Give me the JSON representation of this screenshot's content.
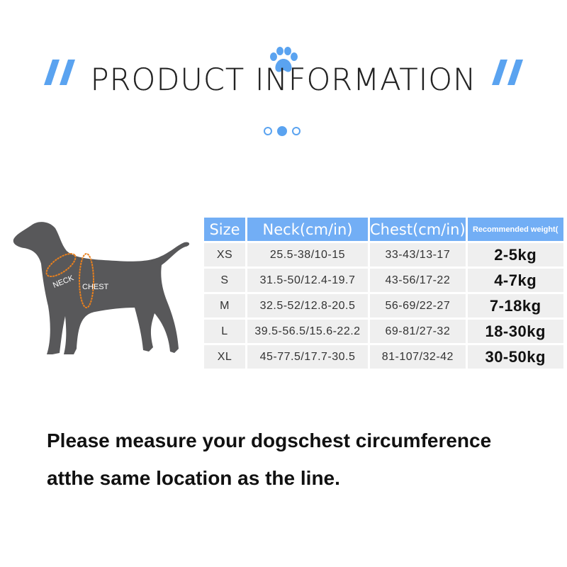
{
  "header": {
    "title": "PRODUCT INFORMATION",
    "accent_color": "#5aa3f0",
    "icon": "paw-icon",
    "carousel": {
      "count": 3,
      "active_index": 1
    }
  },
  "diagram": {
    "neck_label": "NECK",
    "chest_label": "CHEST",
    "measure_color": "#e8801e"
  },
  "size_table": {
    "headers": [
      "Size",
      "Neck(cm/in)",
      "Chest(cm/in)",
      "Recommended weight("
    ],
    "rows": [
      {
        "size": "XS",
        "neck": "25.5-38/10-15",
        "chest": "33-43/13-17",
        "weight": "2-5kg"
      },
      {
        "size": "S",
        "neck": "31.5-50/12.4-19.7",
        "chest": "43-56/17-22",
        "weight": "4-7kg"
      },
      {
        "size": "M",
        "neck": "32.5-52/12.8-20.5",
        "chest": "56-69/22-27",
        "weight": "7-18kg"
      },
      {
        "size": "L",
        "neck": "39.5-56.5/15.6-22.2",
        "chest": "69-81/27-32",
        "weight": "18-30kg"
      },
      {
        "size": "XL",
        "neck": "45-77.5/17.7-30.5",
        "chest": "81-107/32-42",
        "weight": "30-50kg"
      }
    ]
  },
  "note": {
    "line1": "Please measure your dogschest circumference",
    "line2": "atthe same location as the line."
  }
}
